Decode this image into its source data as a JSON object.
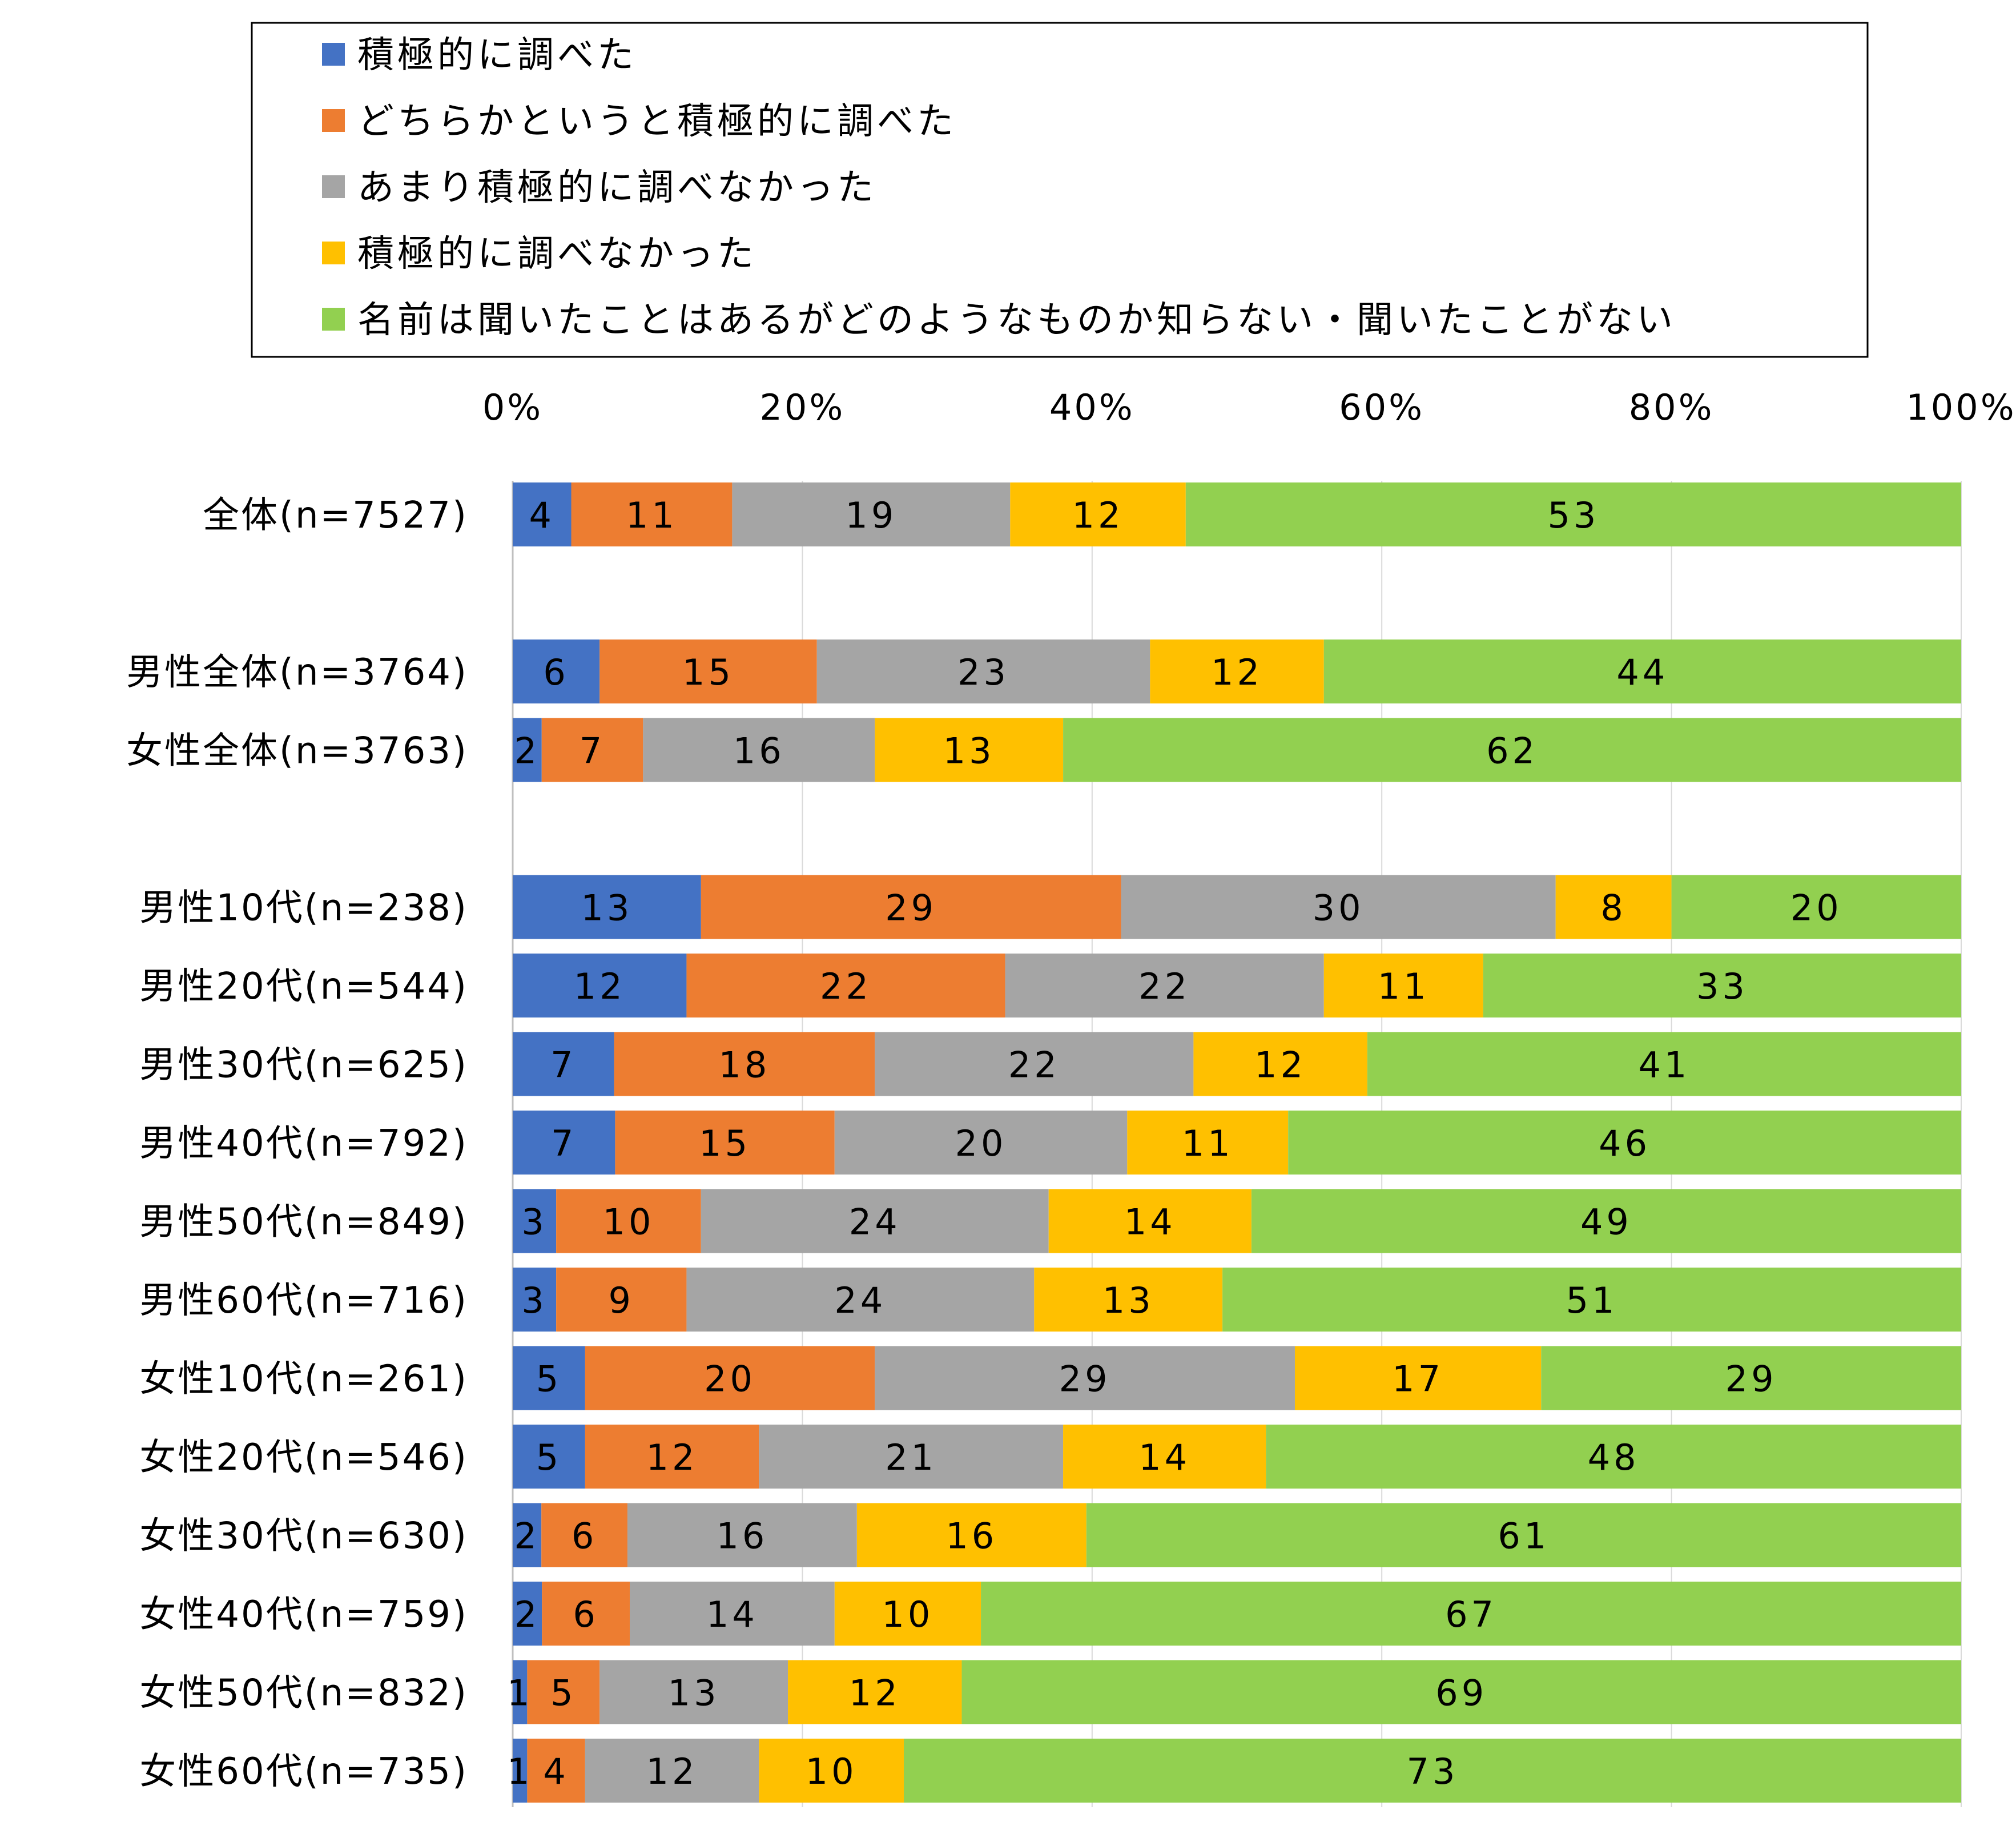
{
  "chart_data": {
    "type": "bar",
    "orientation": "horizontal",
    "stacked": "percent",
    "categories": [
      "全体(n=7527)",
      "男性全体(n=3764)",
      "女性全体(n=3763)",
      "男性10代(n=238)",
      "男性20代(n=544)",
      "男性30代(n=625)",
      "男性40代(n=792)",
      "男性50代(n=849)",
      "男性60代(n=716)",
      "女性10代(n=261)",
      "女性20代(n=546)",
      "女性30代(n=630)",
      "女性40代(n=759)",
      "女性50代(n=832)",
      "女性60代(n=735)"
    ],
    "series": [
      {
        "name": "積極的に調べた",
        "color": "#4472C4",
        "values": [
          4,
          6,
          2,
          13,
          12,
          7,
          7,
          3,
          3,
          5,
          5,
          2,
          2,
          1,
          1
        ]
      },
      {
        "name": "どちらかというと積極的に調べた",
        "color": "#ED7D31",
        "values": [
          11,
          15,
          7,
          29,
          22,
          18,
          15,
          10,
          9,
          20,
          12,
          6,
          6,
          5,
          4
        ]
      },
      {
        "name": "あまり積極的に調べなかった",
        "color": "#A5A5A5",
        "values": [
          19,
          23,
          16,
          30,
          22,
          22,
          20,
          24,
          24,
          29,
          21,
          16,
          14,
          13,
          12
        ]
      },
      {
        "name": "積極的に調べなかった",
        "color": "#FFC000",
        "values": [
          12,
          12,
          13,
          8,
          11,
          12,
          11,
          14,
          13,
          17,
          14,
          16,
          10,
          12,
          10
        ]
      },
      {
        "name": "名前は聞いたことはあるがどのようなものか知らない・聞いたことがない",
        "color": "#92D050",
        "values": [
          53,
          44,
          62,
          20,
          33,
          41,
          46,
          49,
          51,
          29,
          48,
          61,
          67,
          69,
          73
        ]
      }
    ],
    "xaxis": {
      "ticks": [
        "0%",
        "20%",
        "40%",
        "60%",
        "80%",
        "100%"
      ],
      "position": "top",
      "range": [
        0,
        100
      ]
    },
    "grid": true,
    "legend_position": "top",
    "gap_after_categories": [
      0,
      2
    ]
  }
}
